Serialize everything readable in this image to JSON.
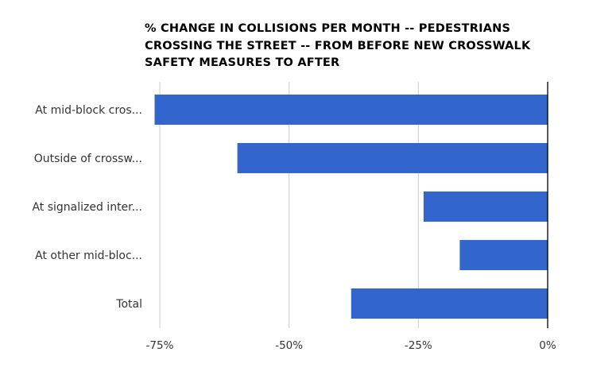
{
  "chart_data": {
    "type": "bar",
    "orientation": "horizontal",
    "title_lines": [
      "% CHANGE IN COLLISIONS PER MONTH -- PEDESTRIANS",
      "CROSSING THE STREET -- FROM BEFORE NEW CROSSWALK",
      "SAFETY MEASURES TO AFTER"
    ],
    "categories": [
      "At mid-block cros...",
      "Outside of crossw...",
      "At signalized inter...",
      "At other mid-bloc...",
      "Total"
    ],
    "values": [
      -76,
      -60,
      -24,
      -17,
      -38
    ],
    "xlim": [
      -75,
      0
    ],
    "xticks": [
      -75,
      -50,
      -25,
      0
    ],
    "xtick_labels": [
      "-75%",
      "-50%",
      "-25%",
      "0%"
    ],
    "grid": true,
    "legend": "none",
    "colors": {
      "bar": "#3366cc",
      "grid": "#cccccc",
      "baseline": "#000000"
    }
  }
}
